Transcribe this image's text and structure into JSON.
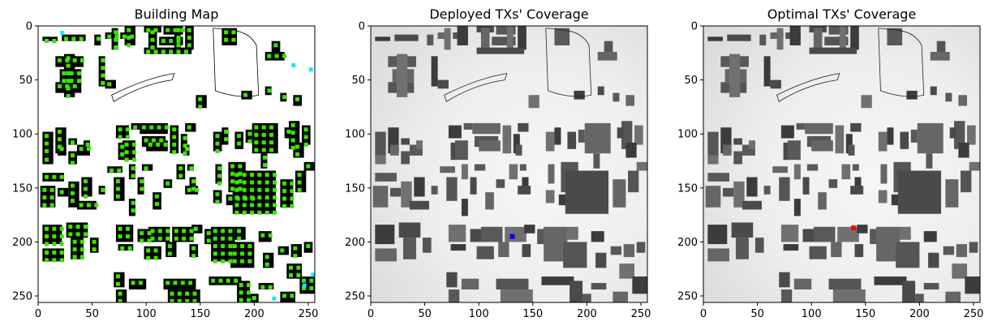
{
  "chart_data": [
    {
      "type": "heatmap",
      "title": "Building Map",
      "xlim": [
        0,
        256
      ],
      "ylim": [
        256,
        0
      ],
      "xticks": [
        0,
        50,
        100,
        150,
        200,
        250
      ],
      "yticks": [
        0,
        50,
        100,
        150,
        200,
        250
      ],
      "grid": false,
      "content": "binary building footprints (black) on white, green candidate transmitter points on rooftops, cyan points at a few corner locations",
      "colors": {
        "building": "#000000",
        "background": "#ffffff",
        "candidate": "#39e600",
        "edge_candidate": "#19e6ff"
      },
      "xlabel": "",
      "ylabel": ""
    },
    {
      "type": "heatmap",
      "title": "Deployed TXs' Coverage",
      "xlim": [
        0,
        256
      ],
      "ylim": [
        256,
        0
      ],
      "xticks": [
        0,
        50,
        100,
        150,
        200,
        250
      ],
      "yticks": [
        0,
        50,
        100,
        150,
        200,
        250
      ],
      "grid": false,
      "content": "grayscale radio coverage map; transmitter marked in blue",
      "transmitter": {
        "x": 131,
        "y": 195,
        "color": "#0000ff"
      },
      "xlabel": "",
      "ylabel": ""
    },
    {
      "type": "heatmap",
      "title": "Optimal TXs' Coverage",
      "xlim": [
        0,
        256
      ],
      "ylim": [
        256,
        0
      ],
      "xticks": [
        0,
        50,
        100,
        150,
        200,
        250
      ],
      "yticks": [
        0,
        50,
        100,
        150,
        200,
        250
      ],
      "grid": false,
      "content": "grayscale radio coverage map; transmitter marked in red",
      "transmitter": {
        "x": 139,
        "y": 187,
        "color": "#ff0000"
      },
      "xlabel": "",
      "ylabel": ""
    }
  ]
}
